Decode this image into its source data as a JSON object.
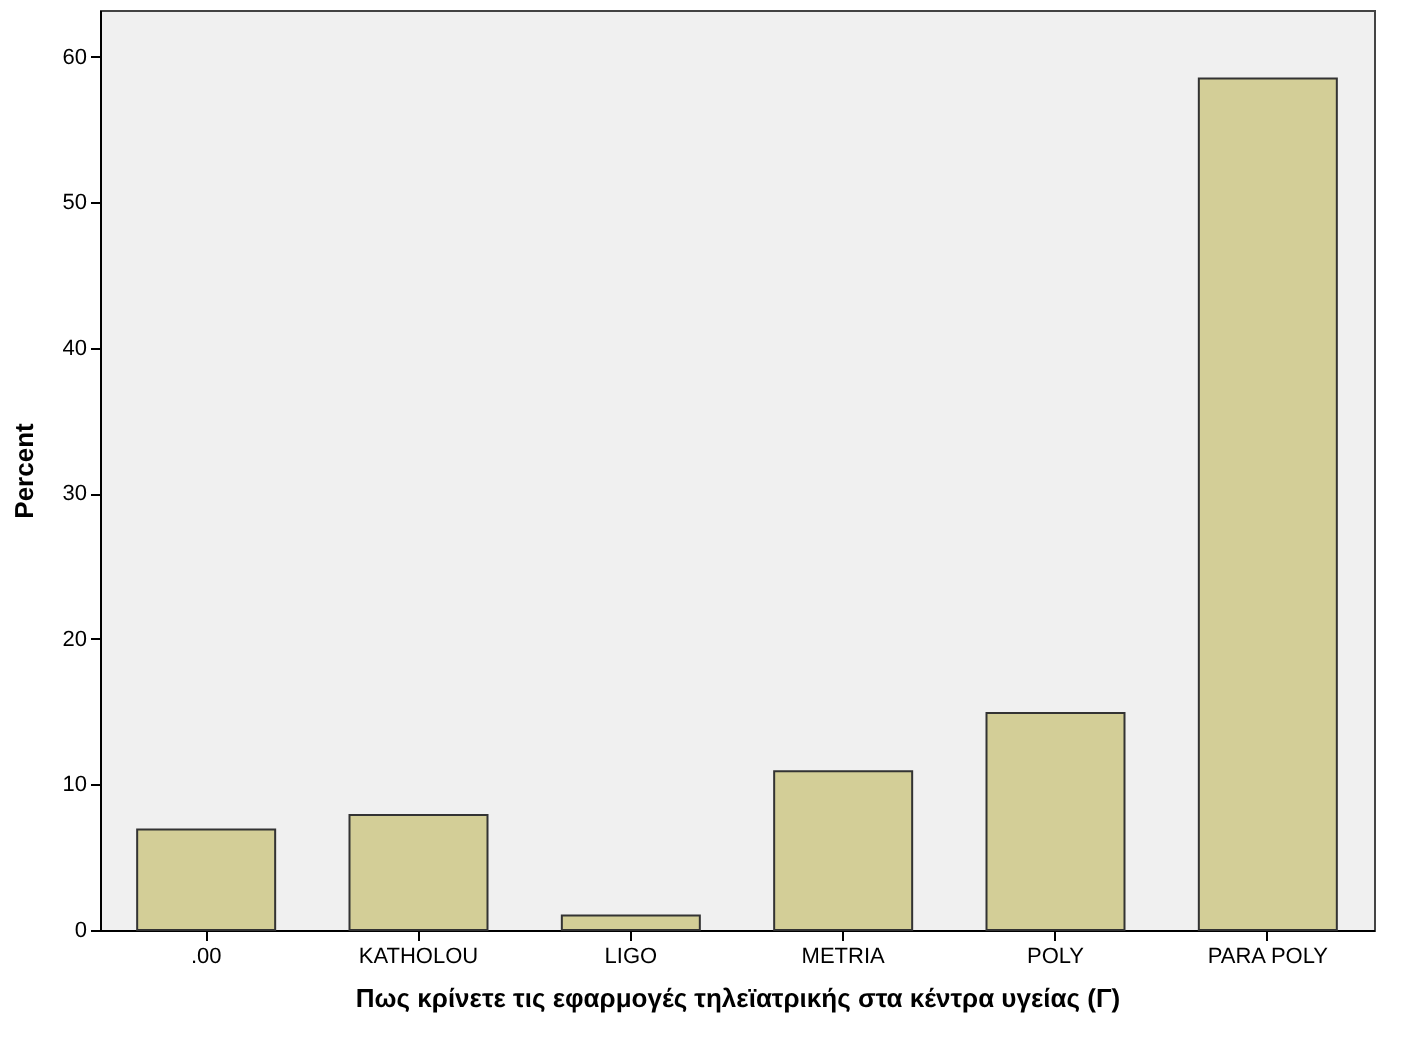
{
  "chart_data": {
    "type": "bar",
    "xlabel": "Πως κρίνετε τις εφαρμογές τηλεϊατρικής στα κέντρα υγείας (Γ)",
    "ylabel": "Percent",
    "categories": [
      ".00",
      "KATHOLOU",
      "LIGO",
      "METRIA",
      "POLY",
      "PARA POLY"
    ],
    "values": [
      6.9,
      7.9,
      1.0,
      10.9,
      14.9,
      58.5
    ],
    "color": "#d3ce97",
    "ylim": [
      0,
      63.2
    ],
    "yticks": [
      0,
      10,
      20,
      30,
      40,
      50,
      60
    ],
    "grid": false
  }
}
